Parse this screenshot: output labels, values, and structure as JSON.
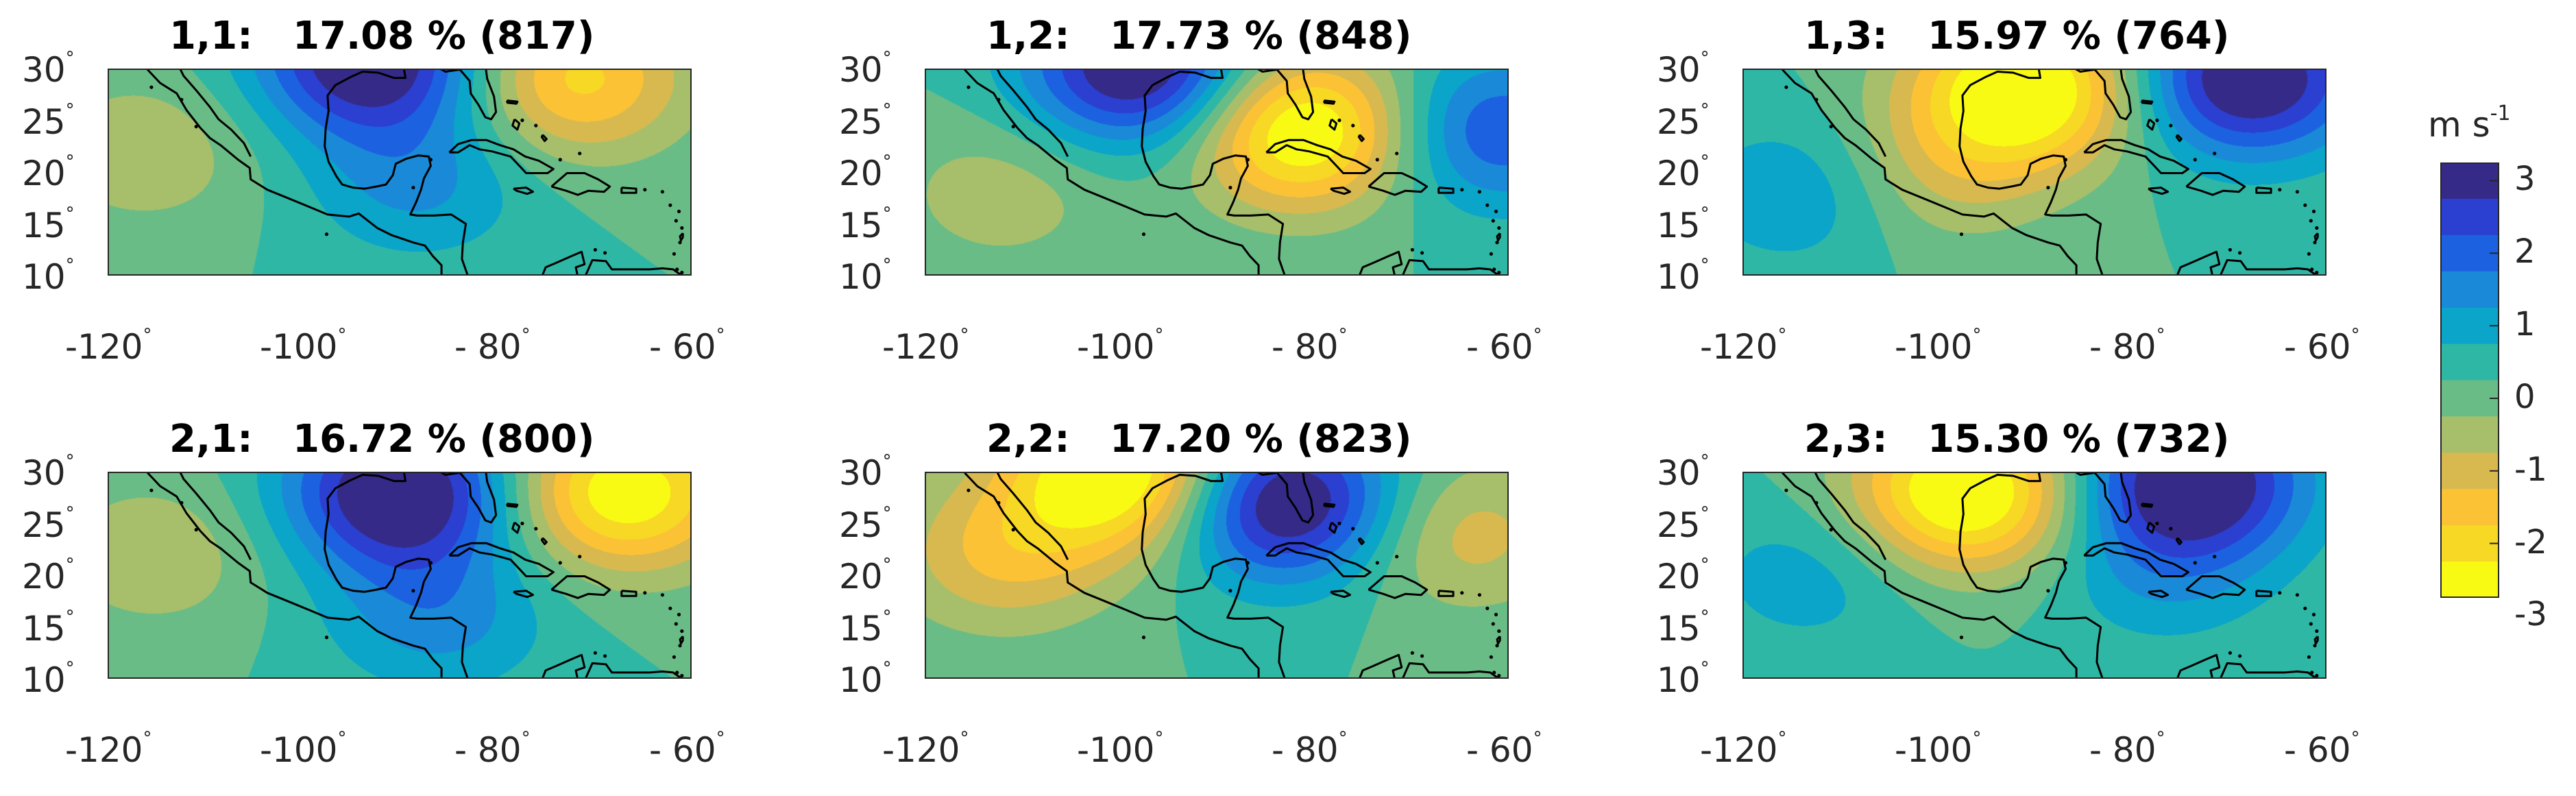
{
  "figure": {
    "panels": [
      {
        "label": "1,1",
        "percent": "17.08 %",
        "count": "(817)",
        "anomalies": [
          {
            "lon": -93,
            "lat": 31,
            "amp": 3.3
          },
          {
            "lon": -72,
            "lat": 29,
            "amp": -2.2
          },
          {
            "lon": -88,
            "lat": 19,
            "amp": 1.1
          },
          {
            "lon": -116,
            "lat": 22,
            "amp": -0.9
          }
        ]
      },
      {
        "label": "1,2",
        "percent": "17.73 %",
        "count": "(848)",
        "anomalies": [
          {
            "lon": -98,
            "lat": 30,
            "amp": 3.3
          },
          {
            "lon": -81,
            "lat": 24,
            "amp": -3.3
          },
          {
            "lon": -62,
            "lat": 24,
            "amp": 2.0
          },
          {
            "lon": -112,
            "lat": 18,
            "amp": -0.8
          }
        ]
      },
      {
        "label": "1,3",
        "percent": "15.97 %",
        "count": "(764)",
        "anomalies": [
          {
            "lon": -91,
            "lat": 28,
            "amp": -3.4
          },
          {
            "lon": -68,
            "lat": 29,
            "amp": 3.3
          },
          {
            "lon": -114,
            "lat": 18,
            "amp": 1.0
          },
          {
            "lon": -100,
            "lat": 20,
            "amp": -1.0
          }
        ]
      },
      {
        "label": "2,1",
        "percent": "16.72 %",
        "count": "(800)",
        "anomalies": [
          {
            "lon": -90,
            "lat": 28,
            "amp": 3.4
          },
          {
            "lon": -67,
            "lat": 28,
            "amp": -3.0
          },
          {
            "lon": -86,
            "lat": 16,
            "amp": 1.2
          },
          {
            "lon": -115,
            "lat": 22,
            "amp": -0.9
          }
        ]
      },
      {
        "label": "2,2",
        "percent": "17.20 %",
        "count": "(823)",
        "anomalies": [
          {
            "lon": -100,
            "lat": 30,
            "amp": -3.4
          },
          {
            "lon": -83,
            "lat": 27,
            "amp": 3.4
          },
          {
            "lon": -65,
            "lat": 24,
            "amp": -1.3
          },
          {
            "lon": -112,
            "lat": 22,
            "amp": -1.5
          }
        ]
      },
      {
        "label": "2,3",
        "percent": "15.30 %",
        "count": "(732)",
        "anomalies": [
          {
            "lon": -97,
            "lat": 28,
            "amp": -3.4
          },
          {
            "lon": -74,
            "lat": 29,
            "amp": 3.4
          },
          {
            "lon": -113,
            "lat": 20,
            "amp": 0.8
          },
          {
            "lon": -77,
            "lat": 20,
            "amp": 0.8
          }
        ]
      }
    ],
    "lon_ticks": [
      "-120",
      "-100",
      "- 80",
      "- 60"
    ],
    "lat_ticks": [
      "30",
      "25",
      "20",
      "15",
      "10"
    ],
    "degree_symbol": "°",
    "lon_range": [
      -120,
      -60
    ],
    "lat_range": [
      10,
      30
    ]
  },
  "colorbar": {
    "unit": "m s",
    "unit_exponent": "-1",
    "ticks": [
      "3",
      "2",
      "1",
      "0",
      "-1",
      "-2",
      "-3"
    ],
    "levels": [
      3.5,
      3,
      2.5,
      2,
      1.5,
      1,
      0.5,
      0,
      -0.5,
      -1,
      -1.5,
      -2,
      -2.5,
      -3,
      -3.5
    ],
    "colors": [
      "#352a87",
      "#2b3fd0",
      "#1c62e0",
      "#1a8ad8",
      "#0aa5c8",
      "#2fb7a6",
      "#6abc86",
      "#a7bf6b",
      "#d7b950",
      "#fbc236",
      "#f7d825",
      "#f9fa14"
    ]
  },
  "colors": {
    "coastline": "#000000",
    "frame": "#262626"
  }
}
